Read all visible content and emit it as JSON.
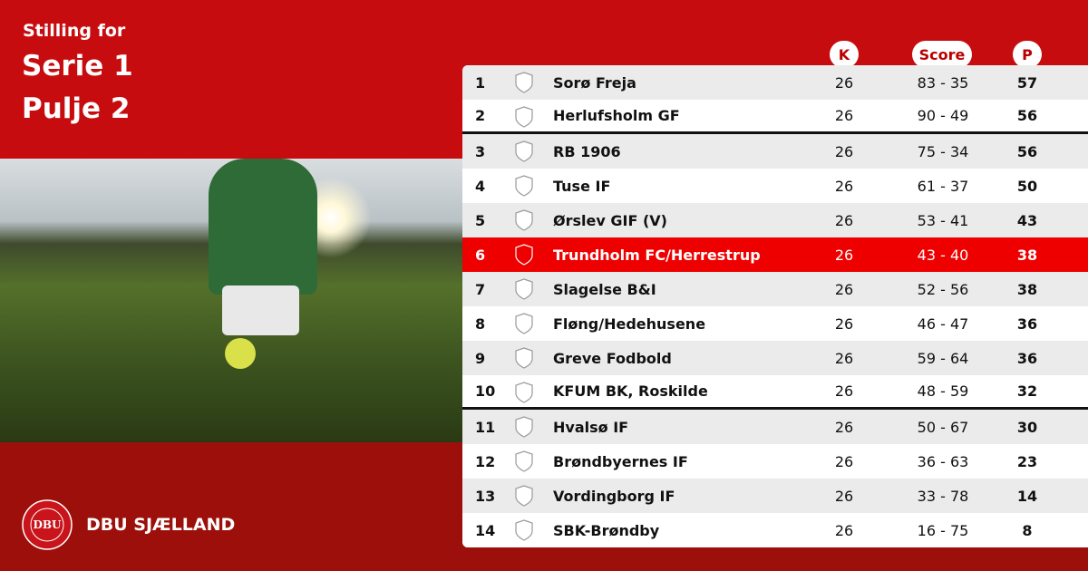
{
  "header": {
    "subtitle": "Stilling for",
    "title_line1": "Serie 1",
    "title_line2": "Pulje 2"
  },
  "columns": {
    "k": "K",
    "score": "Score",
    "p": "P"
  },
  "colors": {
    "primary_red": "#c70c0f",
    "footer_red": "#9c0f0a",
    "highlight": "#ee0000"
  },
  "brand": {
    "name": "DBU SJÆLLAND",
    "logo_text": "DBU DANSK BOLDSPIL-UNION 1889"
  },
  "highlighted_position": 6,
  "rows": [
    {
      "pos": "1",
      "name": "Sorø Freja",
      "k": "26",
      "score": "83 - 35",
      "p": "57"
    },
    {
      "pos": "2",
      "name": "Herlufsholm GF",
      "k": "26",
      "score": "90 - 49",
      "p": "56"
    },
    {
      "pos": "3",
      "name": "RB 1906",
      "k": "26",
      "score": "75 - 34",
      "p": "56"
    },
    {
      "pos": "4",
      "name": "Tuse IF",
      "k": "26",
      "score": "61 - 37",
      "p": "50"
    },
    {
      "pos": "5",
      "name": "Ørslev GIF (V)",
      "k": "26",
      "score": "53 - 41",
      "p": "43"
    },
    {
      "pos": "6",
      "name": "Trundholm FC/Herrestrup",
      "k": "26",
      "score": "43 - 40",
      "p": "38"
    },
    {
      "pos": "7",
      "name": "Slagelse B&I",
      "k": "26",
      "score": "52 - 56",
      "p": "38"
    },
    {
      "pos": "8",
      "name": "Fløng/Hedehusene",
      "k": "26",
      "score": "46 - 47",
      "p": "36"
    },
    {
      "pos": "9",
      "name": "Greve Fodbold",
      "k": "26",
      "score": "59 - 64",
      "p": "36"
    },
    {
      "pos": "10",
      "name": "KFUM BK, Roskilde",
      "k": "26",
      "score": "48 - 59",
      "p": "32"
    },
    {
      "pos": "11",
      "name": "Hvalsø IF",
      "k": "26",
      "score": "50 - 67",
      "p": "30"
    },
    {
      "pos": "12",
      "name": "Brøndbyernes IF",
      "k": "26",
      "score": "36 - 63",
      "p": "23"
    },
    {
      "pos": "13",
      "name": "Vordingborg IF",
      "k": "26",
      "score": "33 - 78",
      "p": "14"
    },
    {
      "pos": "14",
      "name": "SBK-Brøndby",
      "k": "26",
      "score": "16 - 75",
      "p": "8"
    }
  ]
}
